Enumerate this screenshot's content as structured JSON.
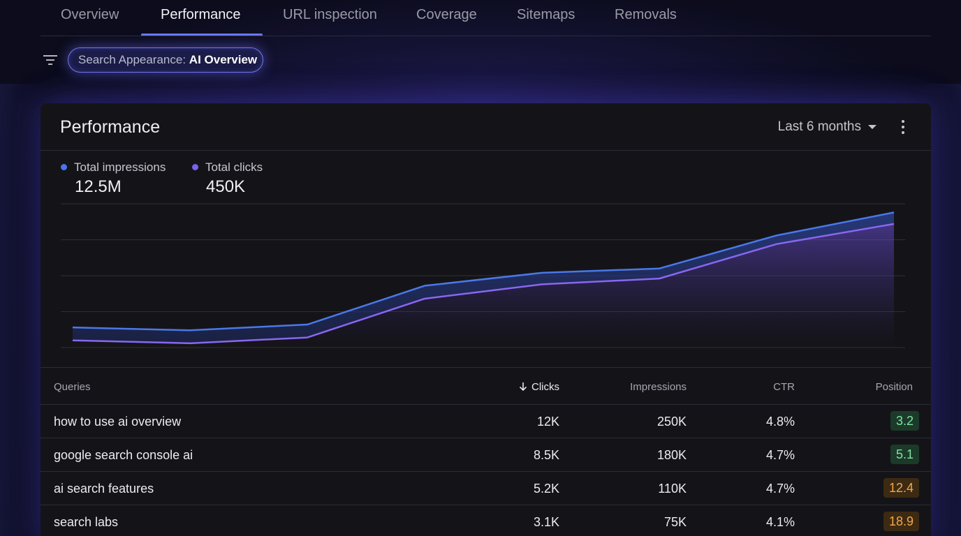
{
  "tabs": [
    {
      "label": "Overview",
      "active": false
    },
    {
      "label": "Performance",
      "active": true
    },
    {
      "label": "URL inspection",
      "active": false
    },
    {
      "label": "Coverage",
      "active": false
    },
    {
      "label": "Sitemaps",
      "active": false
    },
    {
      "label": "Removals",
      "active": false
    }
  ],
  "filter": {
    "icon": "filter-icon",
    "chip_label": "Search Appearance:",
    "chip_value": "AI Overview"
  },
  "card": {
    "title": "Performance",
    "date_range": "Last 6 months",
    "menu_icon": "more-vert-icon"
  },
  "metrics": [
    {
      "label": "Total impressions",
      "value": "12.5M",
      "color": "#4a74ee"
    },
    {
      "label": "Total clicks",
      "value": "450K",
      "color": "#7b62ee"
    }
  ],
  "chart_data": {
    "type": "area",
    "grid": true,
    "legend": "top-left",
    "series": [
      {
        "name": "Total impressions",
        "color": "#4a78e8",
        "values": [
          0.14,
          0.12,
          0.16,
          0.43,
          0.52,
          0.55,
          0.78,
          0.94
        ]
      },
      {
        "name": "Total clicks",
        "color": "#8a66f0",
        "values": [
          0.05,
          0.03,
          0.07,
          0.34,
          0.44,
          0.48,
          0.72,
          0.86
        ]
      }
    ],
    "ylim": [
      0,
      1
    ]
  },
  "table": {
    "headers": {
      "query": "Queries",
      "clicks": "Clicks",
      "impressions": "Impressions",
      "ctr": "CTR",
      "position": "Position"
    },
    "sort_icon": "arrow-down-icon",
    "rows": [
      {
        "query": "how to use ai overview",
        "clicks": "12K",
        "impressions": "250K",
        "ctr": "4.8%",
        "position": "3.2",
        "status": "good"
      },
      {
        "query": "google search console ai",
        "clicks": "8.5K",
        "impressions": "180K",
        "ctr": "4.7%",
        "position": "5.1",
        "status": "good"
      },
      {
        "query": "ai search features",
        "clicks": "5.2K",
        "impressions": "110K",
        "ctr": "4.7%",
        "position": "12.4",
        "status": "warn"
      },
      {
        "query": "search labs",
        "clicks": "3.1K",
        "impressions": "75K",
        "ctr": "4.1%",
        "position": "18.9",
        "status": "warn"
      }
    ]
  }
}
